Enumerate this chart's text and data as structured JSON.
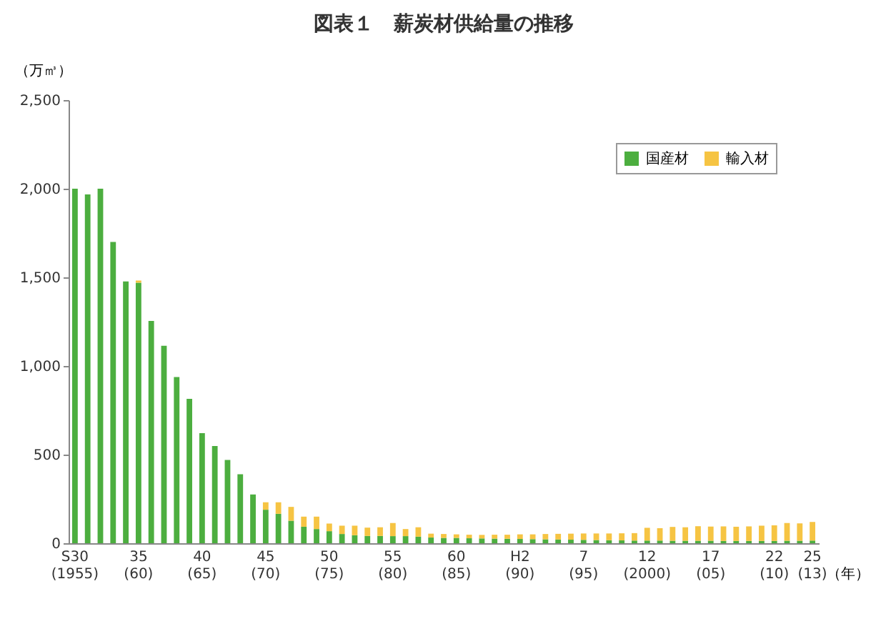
{
  "chart_data": {
    "type": "bar",
    "title": "図表１　薪炭材供給量の推移",
    "xlabel": "（年）",
    "ylabel": "（万㎥）",
    "categories": [
      "S30\n(1955)",
      null,
      null,
      null,
      null,
      "35\n(60)",
      null,
      null,
      null,
      null,
      "40\n(65)",
      null,
      null,
      null,
      null,
      "45\n(70)",
      null,
      null,
      null,
      null,
      "50\n(75)",
      null,
      null,
      null,
      null,
      "55\n(80)",
      null,
      null,
      null,
      null,
      "60\n(85)",
      null,
      null,
      null,
      null,
      "H2\n(90)",
      null,
      null,
      null,
      null,
      "7\n(95)",
      null,
      null,
      null,
      null,
      "12\n(2000)",
      null,
      null,
      null,
      null,
      "17\n(05)",
      null,
      null,
      null,
      null,
      "22\n(10)",
      null,
      null,
      "25\n(13)"
    ],
    "stacked": true,
    "series": [
      {
        "name": "国産材",
        "color": "#4cae3f",
        "values": [
          2000,
          1968,
          2000,
          1700,
          1477,
          1470,
          1254,
          1114,
          937,
          815,
          621,
          548,
          470,
          389,
          275,
          189,
          166,
          127,
          93,
          80,
          68,
          52,
          45,
          41,
          41,
          40,
          40,
          37,
          32,
          30,
          30,
          28,
          27,
          26,
          25,
          24,
          23,
          22,
          21,
          20,
          19,
          18,
          17,
          16,
          15,
          15,
          15,
          14,
          14,
          14,
          14,
          13,
          13,
          13,
          13,
          13,
          14,
          14,
          15
        ]
      },
      {
        "name": "輸入材",
        "color": "#f6c443",
        "values": [
          0,
          0,
          0,
          0,
          0,
          12,
          0,
          0,
          0,
          0,
          0,
          0,
          0,
          0,
          0,
          42,
          65,
          78,
          57,
          70,
          43,
          47,
          54,
          47,
          49,
          74,
          40,
          53,
          22,
          22,
          20,
          20,
          20,
          22,
          23,
          26,
          27,
          30,
          32,
          34,
          36,
          37,
          38,
          40,
          42,
          72,
          70,
          78,
          76,
          82,
          80,
          82,
          80,
          82,
          86,
          88,
          100,
          98,
          105
        ]
      }
    ],
    "ylim": [
      0,
      2500
    ],
    "yticks": [
      {
        "value": 0,
        "label": "0"
      },
      {
        "value": 500,
        "label": "500"
      },
      {
        "value": 1000,
        "label": "1,000"
      },
      {
        "value": 1500,
        "label": "1,500"
      },
      {
        "value": 2000,
        "label": "2,000"
      },
      {
        "value": 2500,
        "label": "2,500"
      }
    ],
    "grid": false,
    "legend": "top right"
  }
}
